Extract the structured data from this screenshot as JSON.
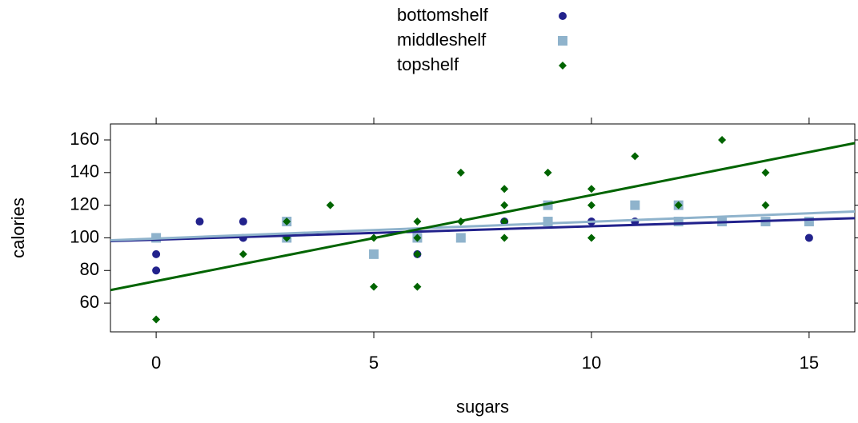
{
  "chart_data": {
    "type": "scatter",
    "x_label": "sugars",
    "y_label": "calories",
    "xlim": [
      -1.05,
      16.05
    ],
    "ylim": [
      42.4,
      169.8
    ],
    "xticks": [
      0,
      5,
      10,
      15
    ],
    "yticks": [
      60,
      80,
      100,
      120,
      140,
      160
    ],
    "series": [
      {
        "name": "bottomshelf",
        "color": "#22228c",
        "marker": "circle",
        "x": [
          0,
          0,
          1,
          2,
          2,
          6,
          8,
          10,
          11,
          15
        ],
        "values": [
          90,
          80,
          110,
          110,
          100,
          90,
          110,
          110,
          110,
          100
        ],
        "intercept": 98.9,
        "slope": 0.82
      },
      {
        "name": "middleshelf",
        "color": "#8fb3cc",
        "marker": "square",
        "x": [
          0,
          3,
          3,
          5,
          6,
          7,
          9,
          9,
          11,
          12,
          12,
          13,
          14,
          15
        ],
        "values": [
          100,
          110,
          100,
          90,
          100,
          100,
          120,
          110,
          120,
          120,
          110,
          110,
          110,
          110
        ],
        "intercept": 99.6,
        "slope": 1.03
      },
      {
        "name": "topshelf",
        "color": "#006400",
        "marker": "diamond",
        "x": [
          0,
          2,
          3,
          3,
          4,
          5,
          5,
          6,
          6,
          6,
          6,
          7,
          7,
          8,
          8,
          8,
          8,
          9,
          10,
          10,
          10,
          11,
          12,
          13,
          14,
          14
        ],
        "values": [
          50,
          90,
          110,
          100,
          120,
          100,
          70,
          110,
          100,
          90,
          70,
          140,
          110,
          130,
          120,
          110,
          100,
          140,
          130,
          120,
          100,
          150,
          120,
          160,
          140,
          120
        ],
        "intercept": 73.5,
        "slope": 5.27
      }
    ]
  }
}
